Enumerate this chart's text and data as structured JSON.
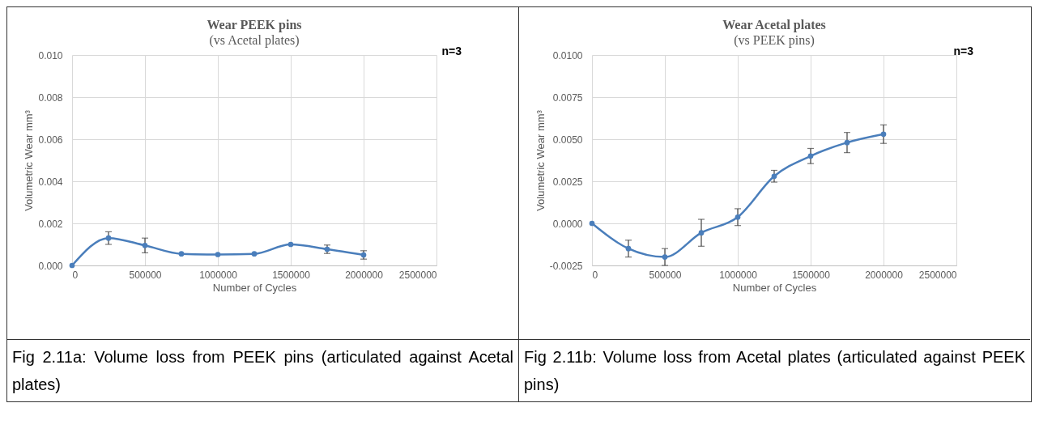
{
  "chart_data": [
    {
      "type": "line",
      "title": "Wear PEEK pins",
      "subtitle": "(vs Acetal plates)",
      "xlabel": "Number of Cycles",
      "ylabel": "Volumetric Wear mm³",
      "x": [
        0,
        250000,
        500000,
        750000,
        1000000,
        1250000,
        1500000,
        1750000,
        2000000
      ],
      "series": [
        {
          "color": "#4a7ebb",
          "values": [
            0,
            0.0013,
            0.00095,
            0.00055,
            0.00052,
            0.00055,
            0.001,
            0.00077,
            0.0005
          ],
          "errors": [
            null,
            0.0003,
            0.00035,
            null,
            null,
            null,
            null,
            0.0002,
            0.0002
          ]
        }
      ],
      "xlim": [
        0,
        2500000
      ],
      "xticks": [
        0,
        500000,
        1000000,
        1500000,
        2000000,
        2500000
      ],
      "ylim": [
        0,
        0.01
      ],
      "yticks": [
        {
          "value": 0,
          "label": "0.000"
        },
        {
          "value": 0.002,
          "label": "0.002"
        },
        {
          "value": 0.004,
          "label": "0.004"
        },
        {
          "value": 0.006,
          "label": "0.006"
        },
        {
          "value": 0.008,
          "label": "0.008"
        },
        {
          "value": 0.01,
          "label": "0.010"
        }
      ],
      "grid": true,
      "marker": "circle",
      "line_style": "solid",
      "annotations": [
        "n=3",
        "Fig 2.11a: Volume loss from PEEK pins (articulated against Acetal plates)"
      ]
    },
    {
      "type": "line",
      "title": "Wear Acetal plates",
      "subtitle": "(vs PEEK pins)",
      "xlabel": "Number of Cycles",
      "ylabel": "Volumetric Wear mm³",
      "x": [
        0,
        250000,
        500000,
        750000,
        1000000,
        1250000,
        1500000,
        1750000,
        2000000
      ],
      "series": [
        {
          "color": "#4a7ebb",
          "values": [
            0,
            -0.0015,
            -0.002,
            -0.00056,
            0.00037,
            0.0028,
            0.004,
            0.0048,
            0.0053
          ],
          "errors": [
            null,
            0.0005,
            0.0005,
            0.0008,
            0.0005,
            0.00035,
            0.00045,
            0.0006,
            0.00055
          ]
        }
      ],
      "xlim": [
        0,
        2500000
      ],
      "xticks": [
        0,
        500000,
        1000000,
        1500000,
        2000000,
        2500000
      ],
      "ylim": [
        -0.0025,
        0.01
      ],
      "yticks": [
        {
          "value": -0.0025,
          "label": "-0.0025"
        },
        {
          "value": 0,
          "label": "0.0000"
        },
        {
          "value": 0.0025,
          "label": "0.0025"
        },
        {
          "value": 0.005,
          "label": "0.0050"
        },
        {
          "value": 0.0075,
          "label": "0.0075"
        },
        {
          "value": 0.01,
          "label": "0.0100"
        }
      ],
      "grid": true,
      "marker": "circle",
      "line_style": "solid",
      "annotations": [
        "n=3",
        "Fig 2.11b: Volume loss from Acetal plates (articulated against PEEK pins)"
      ]
    }
  ]
}
